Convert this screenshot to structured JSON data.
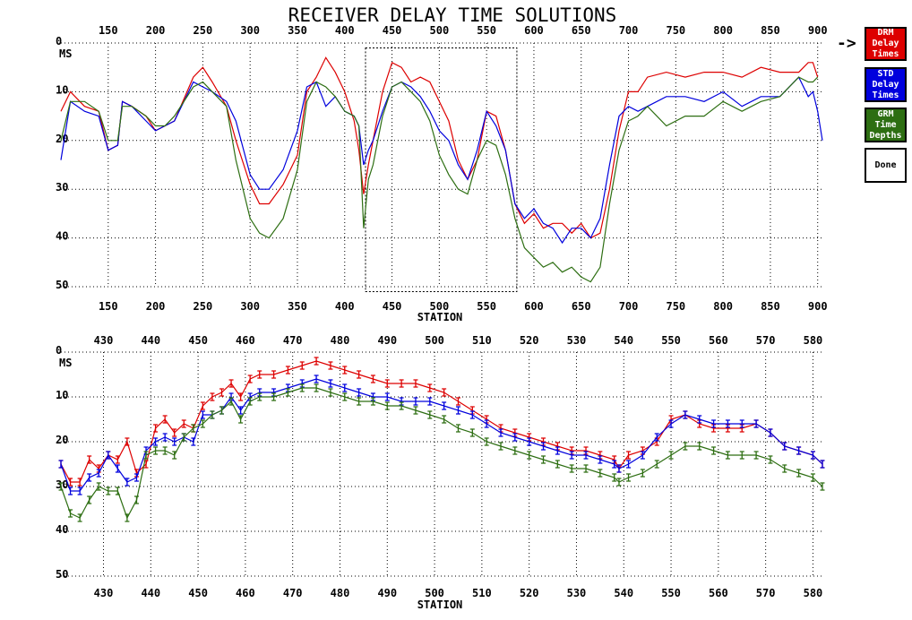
{
  "title": "RECEIVER DELAY TIME SOLUTIONS",
  "colors": {
    "drm": "#dd0000",
    "std": "#0000dd",
    "grm": "#2d6e12",
    "axis": "#000000"
  },
  "controls": {
    "arrow": "->",
    "drm_button": [
      "DRM",
      "Delay",
      "Times"
    ],
    "std_button": [
      "STD",
      "Delay",
      "Times"
    ],
    "grm_button": [
      "GRM",
      "Time",
      "Depths"
    ],
    "done_button": "Done"
  },
  "chart_data": [
    {
      "type": "line",
      "xlabel": "STATION",
      "ylabel": "MS",
      "xlim": [
        100,
        905
      ],
      "ylim": [
        0,
        50
      ],
      "y_reversed": true,
      "xticks": [
        150,
        200,
        250,
        300,
        350,
        400,
        450,
        500,
        550,
        600,
        650,
        700,
        750,
        800,
        850,
        900
      ],
      "yticks": [
        0,
        10,
        20,
        30,
        40,
        50
      ],
      "grid": true,
      "zoom_window": {
        "x_from": 422,
        "x_to": 582,
        "y_from": 1,
        "y_to": 51
      },
      "series": [
        {
          "id": "drm",
          "x": [
            100,
            110,
            125,
            140,
            150,
            160,
            165,
            175,
            190,
            200,
            210,
            220,
            240,
            250,
            260,
            275,
            285,
            300,
            310,
            320,
            335,
            350,
            360,
            370,
            380,
            390,
            400,
            410,
            415,
            420,
            425,
            430,
            440,
            450,
            460,
            470,
            480,
            490,
            500,
            510,
            520,
            530,
            540,
            550,
            560,
            570,
            580,
            590,
            600,
            610,
            620,
            630,
            640,
            650,
            660,
            670,
            680,
            690,
            700,
            710,
            720,
            740,
            760,
            780,
            800,
            820,
            840,
            860,
            880,
            890,
            895,
            900
          ],
          "y": [
            14,
            10,
            13,
            14,
            22,
            21,
            12,
            13,
            15,
            18,
            17,
            16,
            7,
            5,
            8,
            13,
            20,
            29,
            33,
            33,
            29,
            23,
            10,
            7,
            3,
            6,
            10,
            16,
            22,
            31,
            25,
            20,
            10,
            4,
            5,
            8,
            7,
            8,
            12,
            16,
            24,
            28,
            24,
            14,
            15,
            22,
            33,
            37,
            35,
            38,
            37,
            37,
            39,
            37,
            40,
            39,
            30,
            18,
            10,
            10,
            7,
            6,
            7,
            6,
            6,
            7,
            5,
            6,
            6,
            4,
            4,
            7
          ]
        },
        {
          "id": "std",
          "x": [
            100,
            110,
            125,
            140,
            150,
            160,
            165,
            175,
            190,
            200,
            210,
            220,
            240,
            250,
            260,
            275,
            285,
            300,
            310,
            320,
            335,
            350,
            360,
            370,
            380,
            390,
            400,
            410,
            415,
            420,
            425,
            430,
            440,
            450,
            460,
            470,
            480,
            490,
            500,
            510,
            520,
            530,
            540,
            550,
            560,
            570,
            580,
            590,
            600,
            610,
            620,
            630,
            640,
            650,
            660,
            670,
            680,
            690,
            700,
            710,
            720,
            740,
            760,
            780,
            800,
            820,
            840,
            860,
            880,
            890,
            895,
            900,
            905
          ],
          "y": [
            24,
            12,
            14,
            15,
            22,
            21,
            12,
            13,
            16,
            18,
            17,
            16,
            8,
            9,
            10,
            12,
            16,
            27,
            30,
            30,
            26,
            18,
            9,
            8,
            13,
            11,
            14,
            15,
            17,
            25,
            22,
            20,
            14,
            9,
            8,
            9,
            11,
            14,
            18,
            20,
            25,
            28,
            22,
            14,
            17,
            22,
            33,
            36,
            34,
            37,
            38,
            41,
            38,
            38,
            40,
            36,
            25,
            15,
            13,
            14,
            13,
            11,
            11,
            12,
            10,
            13,
            11,
            11,
            7,
            11,
            10,
            14,
            20
          ]
        },
        {
          "id": "grm",
          "x": [
            100,
            110,
            125,
            140,
            150,
            160,
            165,
            175,
            190,
            200,
            210,
            220,
            240,
            250,
            260,
            275,
            285,
            300,
            310,
            320,
            335,
            350,
            360,
            370,
            380,
            390,
            400,
            410,
            415,
            420,
            425,
            430,
            440,
            450,
            460,
            470,
            480,
            490,
            500,
            510,
            520,
            530,
            540,
            550,
            560,
            570,
            580,
            590,
            600,
            610,
            620,
            630,
            640,
            650,
            660,
            670,
            680,
            690,
            700,
            710,
            720,
            740,
            760,
            780,
            800,
            820,
            840,
            860,
            880,
            890,
            895,
            900
          ],
          "y": [
            20,
            12,
            12,
            14,
            20,
            20,
            13,
            13,
            15,
            17,
            17,
            15,
            9,
            8,
            10,
            13,
            24,
            36,
            39,
            40,
            36,
            26,
            12,
            8,
            9,
            11,
            14,
            15,
            17,
            38,
            28,
            25,
            15,
            9,
            8,
            10,
            12,
            16,
            23,
            27,
            30,
            31,
            24,
            20,
            21,
            27,
            36,
            42,
            44,
            46,
            45,
            47,
            46,
            48,
            49,
            46,
            33,
            22,
            16,
            15,
            13,
            17,
            15,
            15,
            12,
            14,
            12,
            11,
            7,
            8,
            8,
            7
          ]
        }
      ]
    },
    {
      "type": "line",
      "xlabel": "STATION",
      "ylabel": "MS",
      "xlim": [
        421,
        582
      ],
      "ylim": [
        0,
        50
      ],
      "y_reversed": true,
      "xticks": [
        430,
        440,
        450,
        460,
        470,
        480,
        490,
        500,
        510,
        520,
        530,
        540,
        550,
        560,
        570,
        580
      ],
      "yticks": [
        0,
        10,
        20,
        30,
        40,
        50
      ],
      "grid": true,
      "error_bars": true,
      "series": [
        {
          "id": "drm",
          "x": [
            421,
            423,
            425,
            427,
            429,
            431,
            433,
            435,
            437,
            439,
            441,
            443,
            445,
            447,
            449,
            451,
            453,
            455,
            457,
            459,
            461,
            463,
            466,
            469,
            472,
            475,
            478,
            481,
            484,
            487,
            490,
            493,
            496,
            499,
            502,
            505,
            508,
            511,
            514,
            517,
            520,
            523,
            526,
            529,
            532,
            535,
            538,
            539,
            541,
            544,
            547,
            550,
            553,
            556,
            559,
            562,
            565,
            568,
            571,
            574,
            577,
            580,
            582
          ],
          "y": [
            25,
            29,
            29,
            24,
            26,
            23,
            24,
            20,
            27,
            25,
            17,
            15,
            18,
            16,
            17,
            12,
            10,
            9,
            7,
            10,
            6,
            5,
            5,
            4,
            3,
            2,
            3,
            4,
            5,
            6,
            7,
            7,
            7,
            8,
            9,
            11,
            13,
            15,
            17,
            18,
            19,
            20,
            21,
            22,
            22,
            23,
            24,
            26,
            23,
            22,
            20,
            15,
            14,
            16,
            17,
            17,
            17,
            16,
            18,
            21,
            22,
            23,
            25
          ]
        },
        {
          "id": "std",
          "x": [
            421,
            423,
            425,
            427,
            429,
            431,
            433,
            435,
            437,
            439,
            441,
            443,
            445,
            447,
            449,
            451,
            453,
            455,
            457,
            459,
            461,
            463,
            466,
            469,
            472,
            475,
            478,
            481,
            484,
            487,
            490,
            493,
            496,
            499,
            502,
            505,
            508,
            511,
            514,
            517,
            520,
            523,
            526,
            529,
            532,
            535,
            538,
            539,
            541,
            544,
            547,
            550,
            553,
            556,
            559,
            562,
            565,
            568,
            571,
            574,
            577,
            580,
            582
          ],
          "y": [
            25,
            31,
            31,
            28,
            27,
            23,
            26,
            29,
            28,
            22,
            20,
            19,
            20,
            19,
            20,
            14,
            14,
            13,
            10,
            13,
            10,
            9,
            9,
            8,
            7,
            6,
            7,
            8,
            9,
            10,
            10,
            11,
            11,
            11,
            12,
            13,
            14,
            16,
            18,
            19,
            20,
            21,
            22,
            23,
            23,
            24,
            25,
            26,
            25,
            23,
            19,
            16,
            14,
            15,
            16,
            16,
            16,
            16,
            18,
            21,
            22,
            23,
            25
          ]
        },
        {
          "id": "grm",
          "x": [
            421,
            423,
            425,
            427,
            429,
            431,
            433,
            435,
            437,
            439,
            441,
            443,
            445,
            447,
            449,
            451,
            453,
            455,
            457,
            459,
            461,
            463,
            466,
            469,
            472,
            475,
            478,
            481,
            484,
            487,
            490,
            493,
            496,
            499,
            502,
            505,
            508,
            511,
            514,
            517,
            520,
            523,
            526,
            529,
            532,
            535,
            538,
            539,
            541,
            544,
            547,
            550,
            553,
            556,
            559,
            562,
            565,
            568,
            571,
            574,
            577,
            580,
            582
          ],
          "y": [
            30,
            36,
            37,
            33,
            30,
            31,
            31,
            37,
            33,
            23,
            22,
            22,
            23,
            19,
            17,
            16,
            14,
            13,
            11,
            15,
            11,
            10,
            10,
            9,
            8,
            8,
            9,
            10,
            11,
            11,
            12,
            12,
            13,
            14,
            15,
            17,
            18,
            20,
            21,
            22,
            23,
            24,
            25,
            26,
            26,
            27,
            28,
            29,
            28,
            27,
            25,
            23,
            21,
            21,
            22,
            23,
            23,
            23,
            24,
            26,
            27,
            28,
            30
          ]
        }
      ]
    }
  ]
}
